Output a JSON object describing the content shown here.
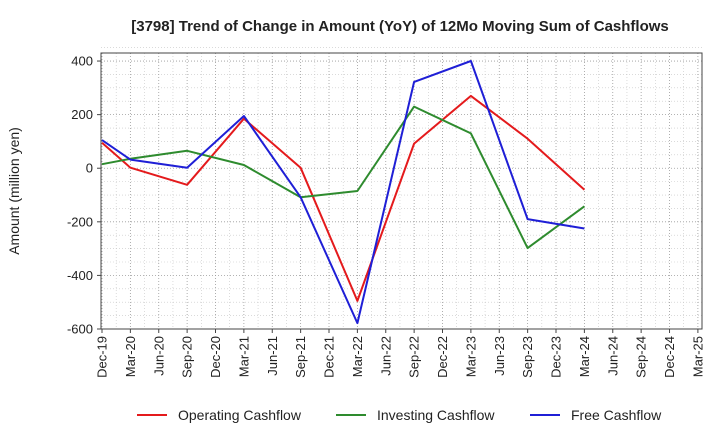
{
  "chart_data": {
    "type": "line",
    "title": "[3798]  Trend of Change in Amount (YoY) of 12Mo Moving Sum of Cashflows",
    "xlabel": "",
    "ylabel": "Amount (million yen)",
    "ylim": [
      -600,
      430
    ],
    "yticks": [
      400,
      200,
      0,
      -200,
      -400,
      -600
    ],
    "ytick_labels": [
      "400",
      "200",
      "0",
      "-200",
      "-400",
      "-600"
    ],
    "grid": true,
    "legend_position": "bottom",
    "categories": [
      "Dec-19",
      "Mar-20",
      "Jun-20",
      "Sep-20",
      "Dec-20",
      "Mar-21",
      "Jun-21",
      "Sep-21",
      "Dec-21",
      "Mar-22",
      "Jun-22",
      "Sep-22",
      "Dec-22",
      "Mar-23",
      "Jun-23",
      "Sep-23",
      "Dec-23",
      "Mar-24",
      "Jun-24",
      "Sep-24",
      "Dec-24",
      "Mar-25"
    ],
    "series": [
      {
        "name": "Operating Cashflow",
        "color": "#e41a1c",
        "values": [
          95,
          2,
          null,
          -62,
          null,
          185,
          null,
          2,
          null,
          -495,
          null,
          92,
          null,
          270,
          null,
          110,
          null,
          -80,
          null,
          null,
          null,
          null
        ]
      },
      {
        "name": "Investing Cashflow",
        "color": "#2e8b2e",
        "values": [
          15,
          35,
          null,
          65,
          null,
          12,
          null,
          -108,
          null,
          -85,
          null,
          230,
          null,
          130,
          null,
          -298,
          null,
          -142,
          null,
          null,
          null,
          null
        ]
      },
      {
        "name": "Free Cashflow",
        "color": "#1f1fd6",
        "values": [
          105,
          32,
          null,
          2,
          null,
          195,
          null,
          -108,
          null,
          -578,
          null,
          322,
          null,
          400,
          null,
          -190,
          null,
          -225,
          null,
          null,
          null,
          null
        ]
      }
    ]
  }
}
